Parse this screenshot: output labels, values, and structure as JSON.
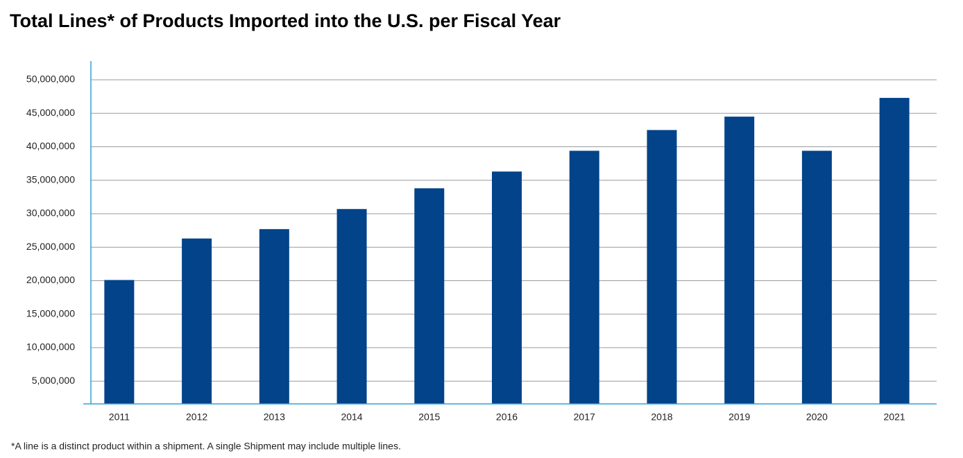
{
  "chart_data": {
    "type": "bar",
    "title": "Total Lines* of Products Imported into the U.S. per Fiscal Year",
    "footnote": "*A line is a distinct product within a shipment. A single Shipment may include multiple lines.",
    "categories": [
      "2011",
      "2012",
      "2013",
      "2014",
      "2015",
      "2016",
      "2017",
      "2018",
      "2019",
      "2020",
      "2021"
    ],
    "values": [
      20100000,
      26300000,
      27700000,
      30700000,
      33800000,
      36300000,
      39400000,
      42500000,
      44500000,
      39400000,
      47300000
    ],
    "color": "#034389",
    "ylim": [
      1600000,
      52800000
    ],
    "yticks": [
      {
        "value": 5000000,
        "label": "5,000,000"
      },
      {
        "value": 10000000,
        "label": "10,000,000"
      },
      {
        "value": 15000000,
        "label": "15,000,000"
      },
      {
        "value": 20000000,
        "label": "20,000,000"
      },
      {
        "value": 25000000,
        "label": "25,000,000"
      },
      {
        "value": 30000000,
        "label": "30,000,000"
      },
      {
        "value": 35000000,
        "label": "35,000,000"
      },
      {
        "value": 40000000,
        "label": "40,000,000"
      },
      {
        "value": 45000000,
        "label": "45,000,000"
      },
      {
        "value": 50000000,
        "label": "50,000,000"
      }
    ],
    "grid": true
  }
}
